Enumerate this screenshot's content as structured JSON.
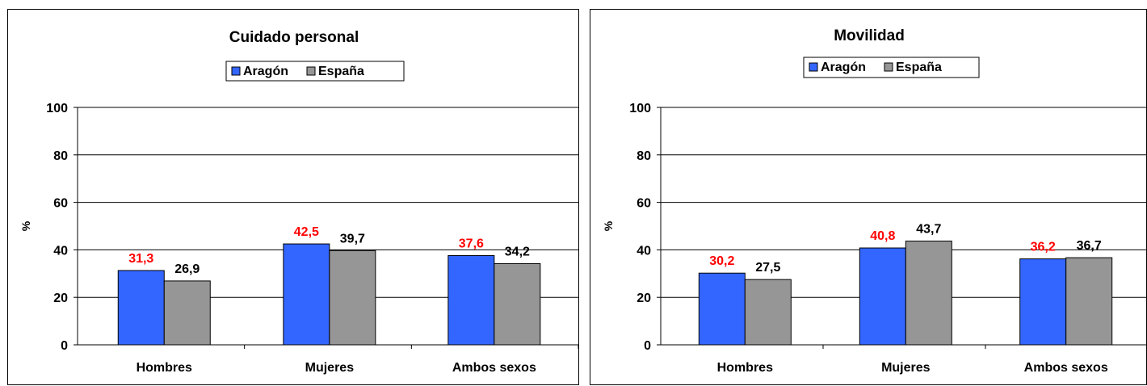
{
  "colors": {
    "aragon": "#3366FF",
    "espana": "#969696",
    "aragon_label": "#FF0000",
    "espana_label": "#000000"
  },
  "chart_data": [
    {
      "type": "bar",
      "title": "Cuidado personal",
      "ylabel": "%",
      "xlabel": "",
      "ylim": [
        0,
        100
      ],
      "yticks": [
        "0",
        "20",
        "40",
        "60",
        "80",
        "100"
      ],
      "grid": true,
      "legend": "top-center",
      "categories": [
        "Hombres",
        "Mujeres",
        "Ambos sexos"
      ],
      "series": [
        {
          "name": "Aragón",
          "values": [
            31.3,
            42.5,
            37.6
          ],
          "labels": [
            "31,3",
            "42,5",
            "37,6"
          ]
        },
        {
          "name": "España",
          "values": [
            26.9,
            39.7,
            34.2
          ],
          "labels": [
            "26,9",
            "39,7",
            "34,2"
          ]
        }
      ]
    },
    {
      "type": "bar",
      "title": "Movilidad",
      "ylabel": "%",
      "xlabel": "",
      "ylim": [
        0,
        100
      ],
      "yticks": [
        "0",
        "20",
        "40",
        "60",
        "80",
        "100"
      ],
      "grid": true,
      "legend": "top-center",
      "categories": [
        "Hombres",
        "Mujeres",
        "Ambos sexos"
      ],
      "series": [
        {
          "name": "Aragón",
          "values": [
            30.2,
            40.8,
            36.2
          ],
          "labels": [
            "30,2",
            "40,8",
            "36,2"
          ]
        },
        {
          "name": "España",
          "values": [
            27.5,
            43.7,
            36.7
          ],
          "labels": [
            "27,5",
            "43,7",
            "36,7"
          ]
        }
      ]
    }
  ]
}
